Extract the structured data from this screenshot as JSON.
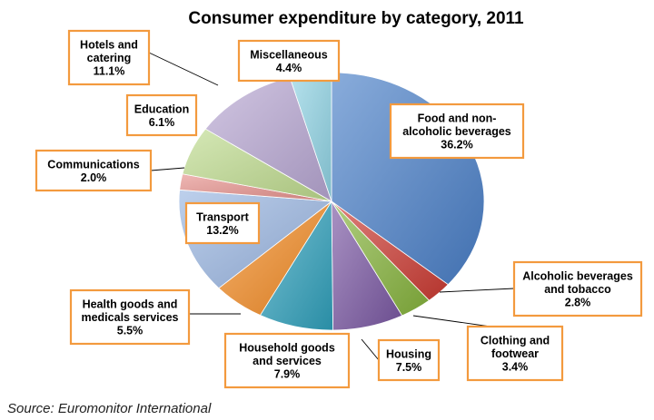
{
  "chart_data": {
    "type": "pie",
    "title": "Consumer expenditure by category, 2011",
    "source": "Source: Euromonitor International",
    "slices": [
      {
        "lines": [
          "Food and non-",
          "alcoholic beverages"
        ],
        "value": 36.2,
        "value_label": "36.2%",
        "color": "#4a7fc8"
      },
      {
        "lines": [
          "Alcoholic beverages",
          "and tobacco"
        ],
        "value": 2.8,
        "value_label": "2.8%",
        "color": "#cc3b33"
      },
      {
        "lines": [
          "Clothing and",
          "footwear"
        ],
        "value": 3.4,
        "value_label": "3.4%",
        "color": "#86b33c"
      },
      {
        "lines": [
          "Housing"
        ],
        "value": 7.5,
        "value_label": "7.5%",
        "color": "#7a58a3"
      },
      {
        "lines": [
          "Household goods",
          "and services"
        ],
        "value": 7.9,
        "value_label": "7.9%",
        "color": "#2fa0bb"
      },
      {
        "lines": [
          "Health goods and",
          "medicals services"
        ],
        "value": 5.5,
        "value_label": "5.5%",
        "color": "#f28a22"
      },
      {
        "lines": [
          "Transport"
        ],
        "value": 13.2,
        "value_label": "13.2%",
        "color": "#9ab6e2"
      },
      {
        "lines": [
          "Communications"
        ],
        "value": 2.0,
        "value_label": "2.0%",
        "color": "#e6908c"
      },
      {
        "lines": [
          "Education"
        ],
        "value": 6.1,
        "value_label": "6.1%",
        "color": "#bfdb8e"
      },
      {
        "lines": [
          "Hotels and",
          "catering"
        ],
        "value": 11.1,
        "value_label": "11.1%",
        "color": "#b8a7d3"
      },
      {
        "lines": [
          "Miscellaneous"
        ],
        "value": 4.4,
        "value_label": "4.4%",
        "color": "#8fd3e4"
      }
    ]
  }
}
